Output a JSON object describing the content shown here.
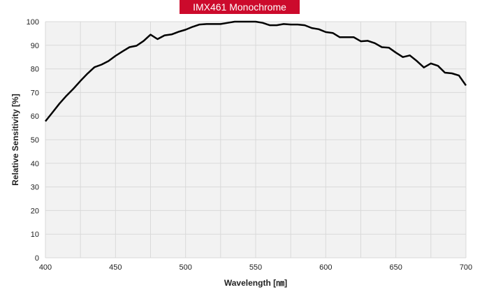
{
  "colors": {
    "title_bg": "#cc0a2c",
    "title_text": "#ffffff",
    "plot_bg": "#f2f2f2",
    "grid": "#d9d9d9",
    "line": "#000000"
  },
  "chart_data": {
    "type": "line",
    "title": "IMX461 Monochrome",
    "xlabel": "Wavelength [㎚]",
    "ylabel": "Relative Sensitivity [%]",
    "xlim": [
      400,
      700
    ],
    "ylim": [
      0,
      100
    ],
    "xticks": [
      400,
      450,
      500,
      550,
      600,
      650,
      700
    ],
    "yticks": [
      0,
      10,
      20,
      30,
      40,
      50,
      60,
      70,
      80,
      90,
      100
    ],
    "grid": true,
    "series": [
      {
        "x": [
          400,
          405,
          410,
          415,
          420,
          425,
          430,
          435,
          440,
          445,
          450,
          455,
          460,
          465,
          470,
          475,
          480,
          485,
          490,
          495,
          500,
          505,
          510,
          515,
          520,
          525,
          530,
          535,
          540,
          545,
          550,
          555,
          560,
          565,
          570,
          575,
          580,
          585,
          590,
          595,
          600,
          605,
          610,
          615,
          620,
          625,
          630,
          635,
          640,
          645,
          650,
          655,
          660,
          665,
          670,
          675,
          680,
          685,
          690,
          695,
          700
        ],
        "values": [
          57.8,
          61.5,
          65.3,
          68.6,
          71.6,
          74.9,
          78.0,
          80.7,
          81.8,
          83.3,
          85.5,
          87.4,
          89.2,
          89.8,
          91.8,
          94.5,
          92.6,
          94.2,
          94.6,
          95.7,
          96.6,
          97.8,
          98.8,
          99.0,
          99.0,
          99.0,
          99.5,
          100.0,
          100.0,
          100.0,
          100.0,
          99.5,
          98.5,
          98.5,
          99.0,
          98.8,
          98.8,
          98.5,
          97.3,
          96.8,
          95.6,
          95.2,
          93.4,
          93.4,
          93.4,
          91.7,
          91.9,
          90.9,
          89.2,
          89.0,
          86.9,
          85.0,
          85.7,
          83.3,
          80.6,
          82.3,
          81.3,
          78.4,
          78.1,
          77.2,
          73.0
        ]
      }
    ]
  }
}
